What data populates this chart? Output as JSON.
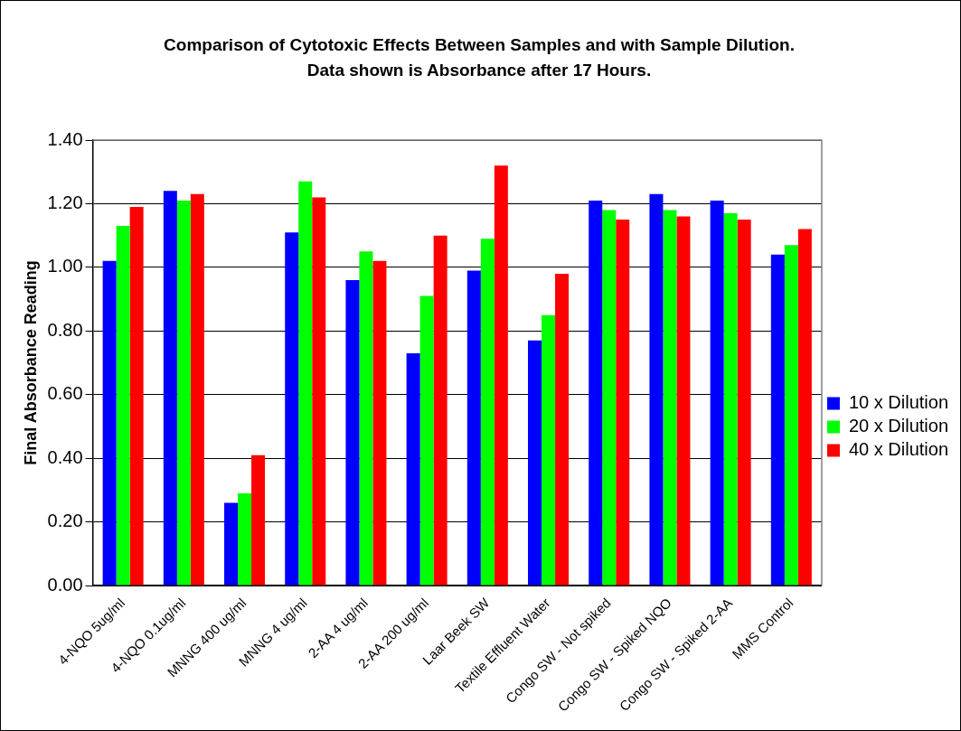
{
  "chart_data": {
    "type": "bar",
    "title": "Comparison of Cytotoxic Effects Between Samples and with Sample Dilution.  Data shown is Absorbance after 17 Hours.",
    "ylabel": "Final Absorbance Reading",
    "categories": [
      "4-NQO 5ug/ml",
      "4-NQO 0.1ug/ml",
      "MNNG 400 ug/ml",
      "MNNG 4 ug/ml",
      "2-AA 4 ug/ml",
      "2-AA 200 ug/ml",
      "Laar Beek SW",
      "Textile Effluent Water",
      "Congo SW - Not spiked",
      "Congo SW - Spiked NQO",
      "Congo SW - Spiked 2-AA",
      "MMS Control"
    ],
    "series": [
      {
        "name": "10 x Dilution",
        "color": "#0000ff",
        "values": [
          1.02,
          1.24,
          0.26,
          1.11,
          0.96,
          0.73,
          0.99,
          0.77,
          1.21,
          1.23,
          1.21,
          1.04
        ]
      },
      {
        "name": "20 x Dilution",
        "color": "#00ff00",
        "values": [
          1.13,
          1.21,
          0.29,
          1.27,
          1.05,
          0.91,
          1.09,
          0.85,
          1.18,
          1.18,
          1.17,
          1.07
        ]
      },
      {
        "name": "40 x Dilution",
        "color": "#ff0000",
        "values": [
          1.19,
          1.23,
          0.41,
          1.22,
          1.02,
          1.1,
          1.32,
          0.98,
          1.15,
          1.16,
          1.15,
          1.12
        ]
      }
    ],
    "ylim": [
      0,
      1.4
    ],
    "yticks": [
      {
        "value": 0,
        "label": "0.00"
      },
      {
        "value": 0.2,
        "label": "0.20"
      },
      {
        "value": 0.4,
        "label": "0.40"
      },
      {
        "value": 0.6,
        "label": "0.60"
      },
      {
        "value": 0.8,
        "label": "0.80"
      },
      {
        "value": 1,
        "label": "1.00"
      },
      {
        "value": 1.2,
        "label": "1.20"
      },
      {
        "value": 1.4,
        "label": "1.40"
      }
    ],
    "grid": "y",
    "legend": "right"
  }
}
